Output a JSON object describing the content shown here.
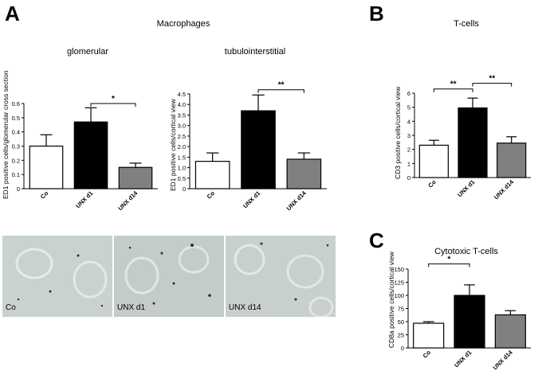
{
  "panels": {
    "a": {
      "letter": "A",
      "title": "Macrophages"
    },
    "b": {
      "letter": "B"
    },
    "c": {
      "letter": "C"
    }
  },
  "chart_data": [
    {
      "id": "glom",
      "type": "bar",
      "title": "glomerular",
      "ylabel": "ED1 positive cells/glomerular cross section",
      "categories": [
        "Co",
        "UNX d1",
        "UNX d14"
      ],
      "values": [
        0.3,
        0.47,
        0.15
      ],
      "errors": [
        0.08,
        0.1,
        0.03
      ],
      "colors": [
        "#ffffff",
        "#000000",
        "#808080"
      ],
      "ylim": [
        0,
        0.6
      ],
      "yticks": [
        "0",
        "0.1",
        "0.2",
        "0.3",
        "0.4",
        "0.5",
        "0.6"
      ],
      "sig": [
        {
          "from": 1,
          "to": 2,
          "label": "*",
          "y": 0.6
        }
      ]
    },
    {
      "id": "tub",
      "type": "bar",
      "title": "tubulointerstitial",
      "ylabel": "ED1 positive cells/cortical view",
      "categories": [
        "Co",
        "UNX d1",
        "UNX d14"
      ],
      "values": [
        1.3,
        3.7,
        1.4
      ],
      "errors": [
        0.4,
        0.75,
        0.3
      ],
      "colors": [
        "#ffffff",
        "#000000",
        "#808080"
      ],
      "ylim": [
        0,
        4.5
      ],
      "yticks": [
        "0",
        "0.5",
        "1.0",
        "1.5",
        "2.0",
        "2.5",
        "3.0",
        "3.5",
        "4.0",
        "4.5"
      ],
      "sig": [
        {
          "from": 1,
          "to": 2,
          "label": "**",
          "y": 4.7
        }
      ]
    },
    {
      "id": "tcell",
      "type": "bar",
      "title": "T-cells",
      "ylabel": "CD3 positive cells/cortical view",
      "categories": [
        "Co",
        "UNX d1",
        "UNX d14"
      ],
      "values": [
        2.3,
        4.95,
        2.45
      ],
      "errors": [
        0.35,
        0.7,
        0.45
      ],
      "colors": [
        "#ffffff",
        "#000000",
        "#808080"
      ],
      "ylim": [
        0,
        6
      ],
      "yticks": [
        "0",
        "1",
        "2",
        "3",
        "4",
        "5",
        "6"
      ],
      "sig": [
        {
          "from": 0,
          "to": 1,
          "label": "**",
          "y": 6.3
        },
        {
          "from": 1,
          "to": 2,
          "label": "**",
          "y": 6.7
        }
      ]
    },
    {
      "id": "cyto",
      "type": "bar",
      "title": "Cytotoxic T-cells",
      "ylabel": "CD8a positive cells/cortical view",
      "categories": [
        "Co",
        "UNX d1",
        "UNX d14"
      ],
      "values": [
        47,
        100,
        63
      ],
      "errors": [
        3,
        20,
        8
      ],
      "colors": [
        "#ffffff",
        "#000000",
        "#808080"
      ],
      "ylim": [
        0,
        150
      ],
      "yticks": [
        "0",
        "25",
        "50",
        "75",
        "100",
        "125",
        "150"
      ],
      "sig": [
        {
          "from": 0,
          "to": 1,
          "label": "*",
          "y": 160
        }
      ]
    }
  ],
  "micrographs": [
    {
      "caption": "Co"
    },
    {
      "caption": "UNX d1"
    },
    {
      "caption": "UNX d14"
    }
  ]
}
